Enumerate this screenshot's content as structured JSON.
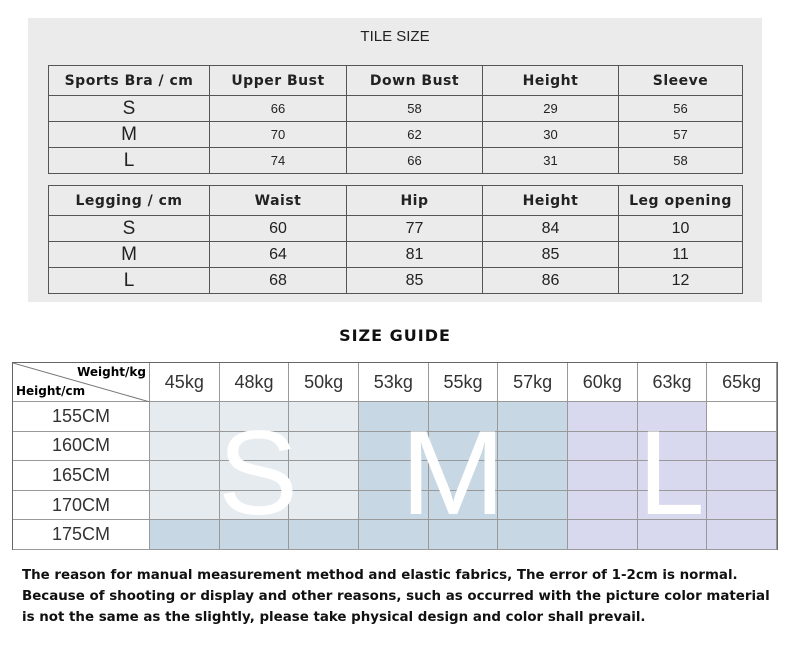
{
  "tile_size": {
    "title": "TILE SIZE",
    "bra": {
      "headers": [
        "Sports Bra / cm",
        "Upper Bust",
        "Down Bust",
        "Height",
        "Sleeve"
      ],
      "rows": [
        [
          "S",
          "66",
          "58",
          "29",
          "56"
        ],
        [
          "M",
          "70",
          "62",
          "30",
          "57"
        ],
        [
          "L",
          "74",
          "66",
          "31",
          "58"
        ]
      ]
    },
    "legging": {
      "headers": [
        "Legging / cm",
        "Waist",
        "Hip",
        "Height",
        "Leg opening"
      ],
      "rows": [
        [
          "S",
          "60",
          "77",
          "84",
          "10"
        ],
        [
          "M",
          "64",
          "81",
          "85",
          "11"
        ],
        [
          "L",
          "68",
          "85",
          "86",
          "12"
        ]
      ]
    }
  },
  "size_guide": {
    "title": "SIZE GUIDE",
    "weight_label": "Weight/kg",
    "height_label": "Height/cm",
    "weights": [
      "45kg",
      "48kg",
      "50kg",
      "53kg",
      "55kg",
      "57kg",
      "60kg",
      "63kg",
      "65kg"
    ],
    "heights": [
      "155CM",
      "160CM",
      "165CM",
      "170CM",
      "175CM"
    ],
    "sizes": [
      [
        "S",
        "S",
        "S",
        "M",
        "M",
        "M",
        "L",
        "L",
        ""
      ],
      [
        "S",
        "S",
        "S",
        "M",
        "M",
        "M",
        "L",
        "L",
        "L"
      ],
      [
        "S",
        "S",
        "S",
        "M",
        "M",
        "M",
        "L",
        "L",
        "L"
      ],
      [
        "S",
        "S",
        "S",
        "M",
        "M",
        "M",
        "L",
        "L",
        "L"
      ],
      [
        "M",
        "M",
        "M",
        "M",
        "M",
        "M",
        "L",
        "L",
        "L"
      ]
    ],
    "size_labels": [
      "S",
      "M",
      "L"
    ],
    "colors": {
      "S": "#e6ebf0",
      "M": "#c7d7e3",
      "L": "#d8d8ee",
      "": "#ffffff"
    }
  },
  "notes": [
    "The reason for manual measurement method and elastic fabrics, The error of 1-2cm is normal.",
    "Because of shooting or display and other reasons, such as occurred with the picture color material",
    "is not the same as the slightly, please take physical design and color shall prevail."
  ]
}
